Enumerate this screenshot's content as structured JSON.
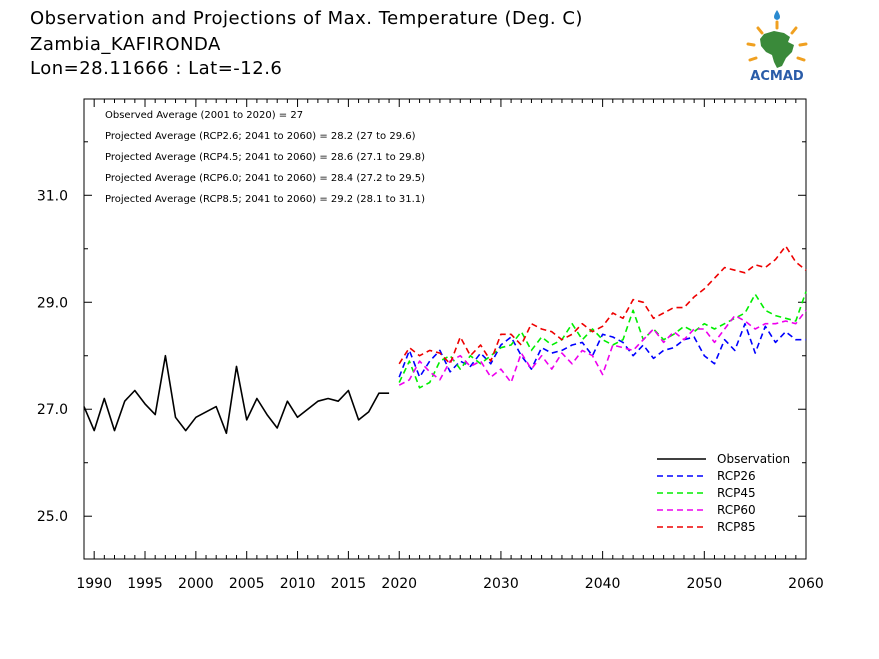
{
  "header": {
    "line1": "Observation and Projections of Max. Temperature (Deg. C)",
    "line2": "Zambia_KAFIRONDA",
    "line3": "Lon=28.11666 : Lat=-12.6"
  },
  "logo": {
    "text": "ACMAD",
    "icon": "acmad-africa-logo-icon",
    "colors": {
      "africa": "#3a8a3a",
      "sun": "#f0a020",
      "text": "#2a5ca8",
      "drop": "#2a8ad0"
    }
  },
  "chart_data": {
    "type": "line",
    "title": "Observation and Projections of Max. Temperature (Deg. C)",
    "xlabel": "",
    "ylabel": "",
    "xlim": [
      1989,
      2060
    ],
    "ylim": [
      24.2,
      32.8
    ],
    "grid": false,
    "x_ticks": [
      {
        "value": 1990,
        "label": "1990"
      },
      {
        "value": 1995,
        "label": "1995"
      },
      {
        "value": 2000,
        "label": "2000"
      },
      {
        "value": 2005,
        "label": "2005"
      },
      {
        "value": 2010,
        "label": "2010"
      },
      {
        "value": 2015,
        "label": "2015"
      },
      {
        "value": 2020,
        "label": "2020"
      },
      {
        "value": 2030,
        "label": "2030"
      },
      {
        "value": 2040,
        "label": "2040"
      },
      {
        "value": 2050,
        "label": "2050"
      },
      {
        "value": 2060,
        "label": "2060"
      }
    ],
    "y_ticks": [
      {
        "value": 25,
        "label": "25.0"
      },
      {
        "value": 27,
        "label": "27.0"
      },
      {
        "value": 29,
        "label": "29.0"
      },
      {
        "value": 31,
        "label": "31.0"
      }
    ],
    "annotations": [
      "Observed Average (2001 to 2020) = 27",
      "Projected Average (RCP2.6; 2041 to 2060) = 28.2 (27 to 29.6)",
      "Projected Average (RCP4.5; 2041 to 2060) = 28.6 (27.1 to 29.8)",
      "Projected Average (RCP6.0; 2041 to 2060) = 28.4 (27.2 to 29.5)",
      "Projected Average (RCP8.5; 2041 to 2060) = 29.2 (28.1 to 31.1)"
    ],
    "legend_position": "bottom-right",
    "series": [
      {
        "name": "Observation",
        "color": "#000000",
        "dashed": false,
        "x": [
          1989,
          1990,
          1991,
          1992,
          1993,
          1994,
          1995,
          1996,
          1997,
          1998,
          1999,
          2000,
          2001,
          2002,
          2003,
          2004,
          2005,
          2006,
          2007,
          2008,
          2009,
          2010,
          2011,
          2012,
          2013,
          2014,
          2015,
          2016,
          2017,
          2018,
          2019
        ],
        "values": [
          27.05,
          26.6,
          27.2,
          26.6,
          27.15,
          27.35,
          27.1,
          26.9,
          28.0,
          26.85,
          26.6,
          26.85,
          26.95,
          27.05,
          26.55,
          27.8,
          26.8,
          27.2,
          26.9,
          26.65,
          27.15,
          26.85,
          27.0,
          27.15,
          27.2,
          27.15,
          27.35,
          26.8,
          26.95,
          27.3,
          27.3
        ]
      },
      {
        "name": "RCP26",
        "color": "#0000ff",
        "dashed": true,
        "x": [
          2020,
          2021,
          2022,
          2023,
          2024,
          2025,
          2026,
          2027,
          2028,
          2029,
          2030,
          2031,
          2032,
          2033,
          2034,
          2035,
          2036,
          2037,
          2038,
          2039,
          2040,
          2041,
          2042,
          2043,
          2044,
          2045,
          2046,
          2047,
          2048,
          2049,
          2050,
          2051,
          2052,
          2053,
          2054,
          2055,
          2056,
          2057,
          2058,
          2059,
          2060
        ],
        "values": [
          27.6,
          28.1,
          27.6,
          27.9,
          28.1,
          27.7,
          27.9,
          27.8,
          28.05,
          27.85,
          28.2,
          28.35,
          28.0,
          27.75,
          28.15,
          28.05,
          28.1,
          28.2,
          28.25,
          28.0,
          28.4,
          28.35,
          28.25,
          28.0,
          28.2,
          27.95,
          28.1,
          28.15,
          28.3,
          28.35,
          28.0,
          27.85,
          28.3,
          28.1,
          28.6,
          28.05,
          28.55,
          28.25,
          28.45,
          28.3,
          28.3
        ]
      },
      {
        "name": "RCP45",
        "color": "#00ee00",
        "dashed": true,
        "x": [
          2020,
          2021,
          2022,
          2023,
          2024,
          2025,
          2026,
          2027,
          2028,
          2029,
          2030,
          2031,
          2032,
          2033,
          2034,
          2035,
          2036,
          2037,
          2038,
          2039,
          2040,
          2041,
          2042,
          2043,
          2044,
          2045,
          2046,
          2047,
          2048,
          2049,
          2050,
          2051,
          2052,
          2053,
          2054,
          2055,
          2056,
          2057,
          2058,
          2059,
          2060
        ],
        "values": [
          27.5,
          27.9,
          27.4,
          27.5,
          27.9,
          28.0,
          27.75,
          28.0,
          27.85,
          28.0,
          28.15,
          28.2,
          28.45,
          28.1,
          28.35,
          28.2,
          28.3,
          28.6,
          28.3,
          28.5,
          28.3,
          28.2,
          28.3,
          28.85,
          28.3,
          28.5,
          28.3,
          28.4,
          28.55,
          28.45,
          28.6,
          28.5,
          28.6,
          28.7,
          28.8,
          29.15,
          28.85,
          28.75,
          28.7,
          28.65,
          29.2
        ]
      },
      {
        "name": "RCP60",
        "color": "#ee00ee",
        "dashed": true,
        "x": [
          2020,
          2021,
          2022,
          2023,
          2024,
          2025,
          2026,
          2027,
          2028,
          2029,
          2030,
          2031,
          2032,
          2033,
          2034,
          2035,
          2036,
          2037,
          2038,
          2039,
          2040,
          2041,
          2042,
          2043,
          2044,
          2045,
          2046,
          2047,
          2048,
          2049,
          2050,
          2051,
          2052,
          2053,
          2054,
          2055,
          2056,
          2057,
          2058,
          2059,
          2060
        ],
        "values": [
          27.45,
          27.55,
          27.9,
          27.7,
          27.55,
          27.9,
          28.0,
          27.8,
          27.9,
          27.6,
          27.75,
          27.5,
          28.05,
          27.75,
          28.0,
          27.75,
          28.05,
          27.85,
          28.1,
          28.0,
          27.65,
          28.2,
          28.15,
          28.1,
          28.3,
          28.5,
          28.25,
          28.45,
          28.3,
          28.5,
          28.5,
          28.25,
          28.5,
          28.75,
          28.65,
          28.5,
          28.6,
          28.6,
          28.65,
          28.6,
          28.85
        ]
      },
      {
        "name": "RCP85",
        "color": "#ee0000",
        "dashed": true,
        "x": [
          2020,
          2021,
          2022,
          2023,
          2024,
          2025,
          2026,
          2027,
          2028,
          2029,
          2030,
          2031,
          2032,
          2033,
          2034,
          2035,
          2036,
          2037,
          2038,
          2039,
          2040,
          2041,
          2042,
          2043,
          2044,
          2045,
          2046,
          2047,
          2048,
          2049,
          2050,
          2051,
          2052,
          2053,
          2054,
          2055,
          2056,
          2057,
          2058,
          2059,
          2060
        ],
        "values": [
          27.85,
          28.15,
          28.0,
          28.1,
          28.05,
          27.85,
          28.35,
          28.0,
          28.2,
          27.9,
          28.4,
          28.4,
          28.2,
          28.6,
          28.5,
          28.45,
          28.3,
          28.4,
          28.6,
          28.45,
          28.55,
          28.8,
          28.7,
          29.05,
          29.0,
          28.7,
          28.8,
          28.9,
          28.9,
          29.1,
          29.25,
          29.45,
          29.65,
          29.6,
          29.55,
          29.7,
          29.65,
          29.8,
          30.05,
          29.75,
          29.6
        ]
      }
    ]
  }
}
